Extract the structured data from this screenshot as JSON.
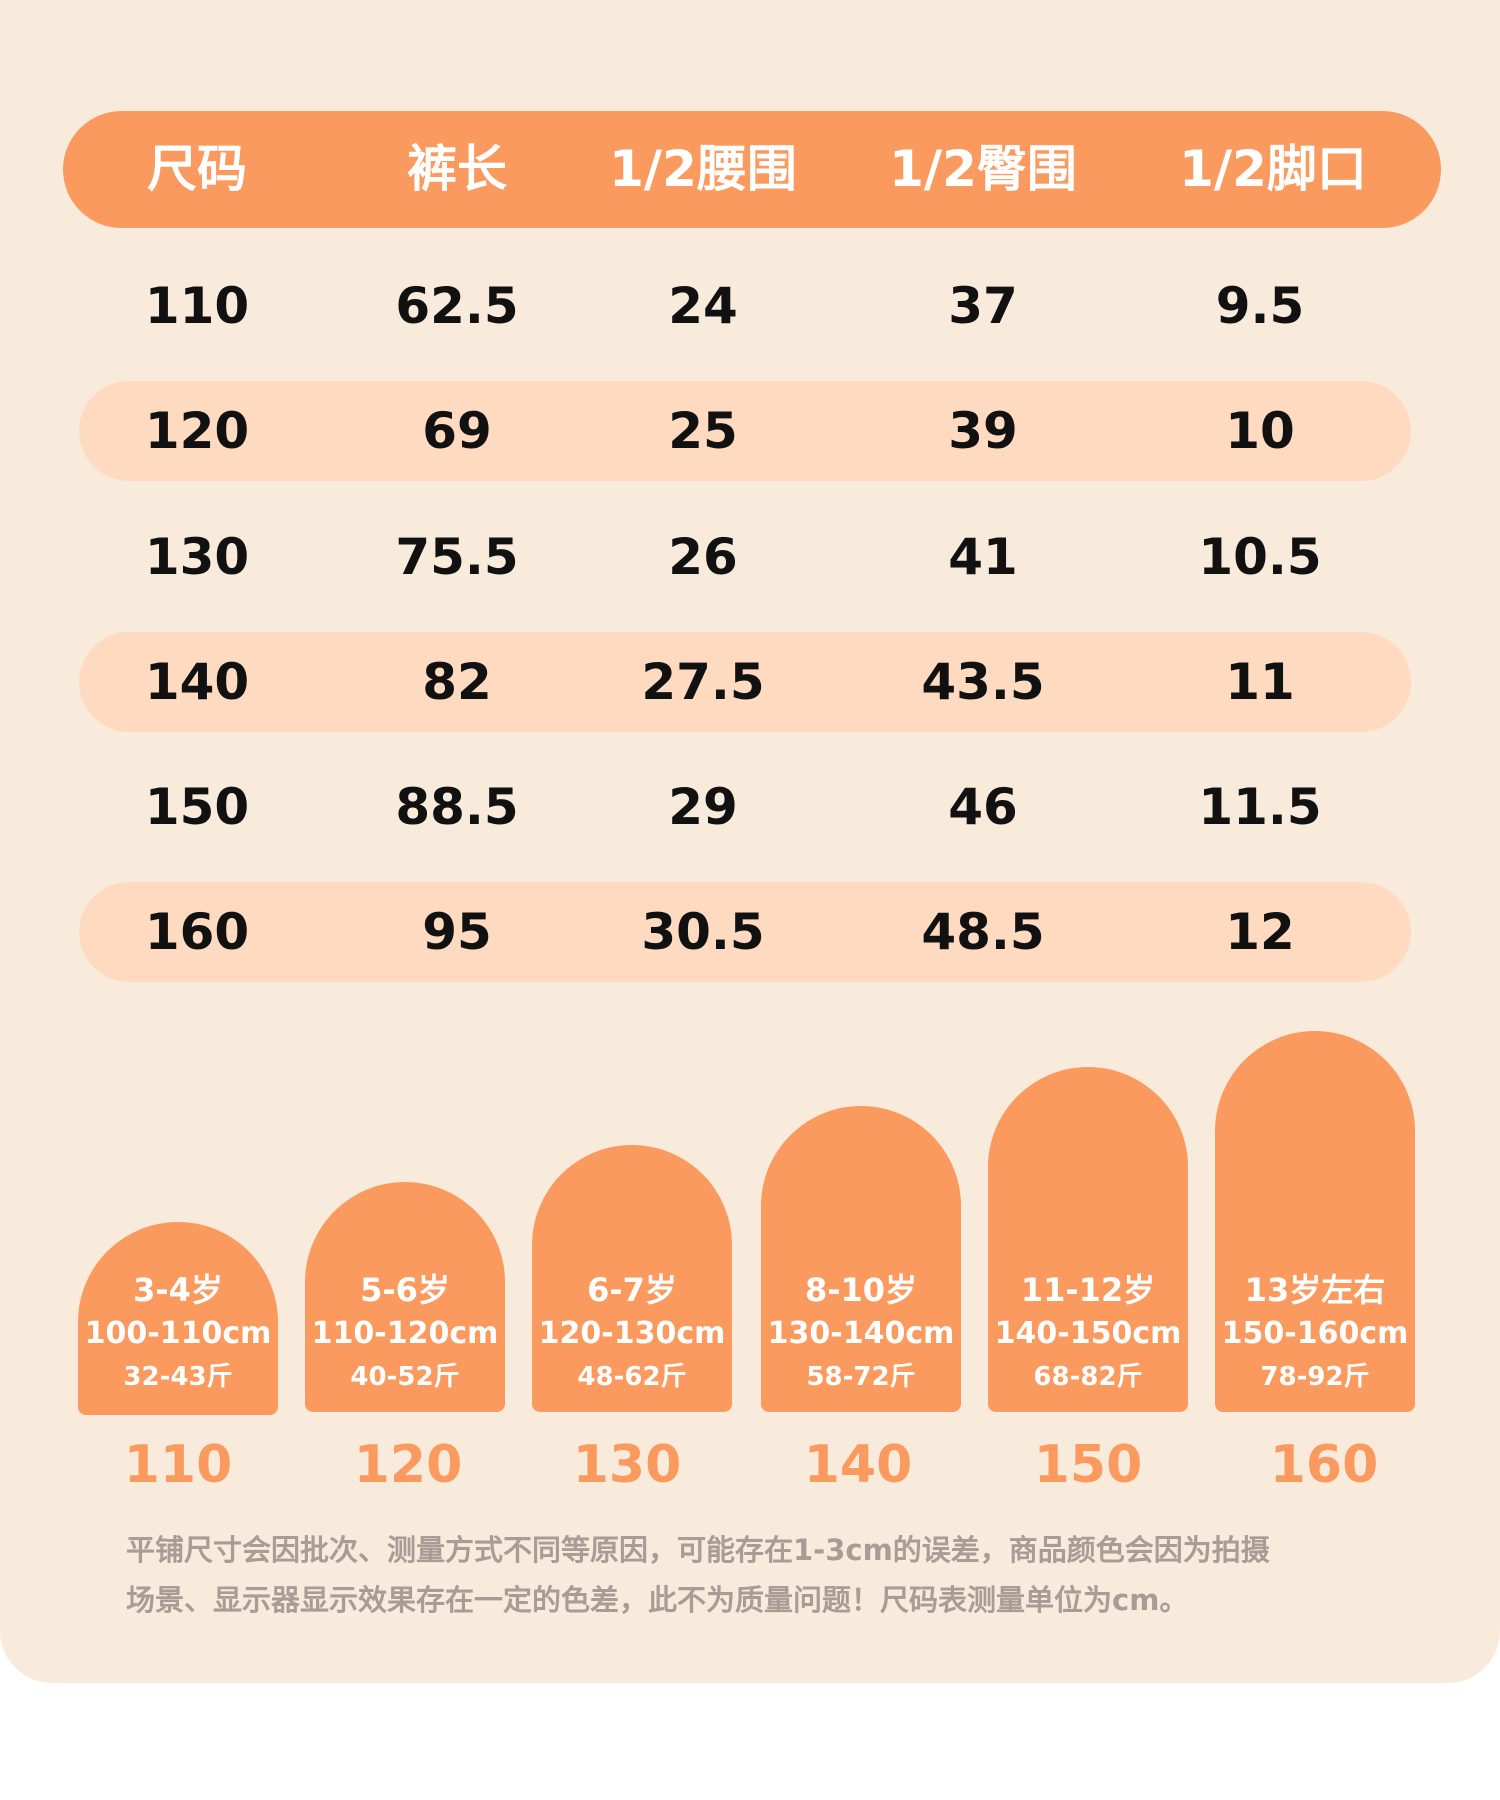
{
  "table": {
    "headers": [
      "尺码",
      "裤长",
      "1/2腰围",
      "1/2臀围",
      "1/2脚口"
    ],
    "rows": [
      [
        "110",
        "62.5",
        "24",
        "37",
        "9.5"
      ],
      [
        "120",
        "69",
        "25",
        "39",
        "10"
      ],
      [
        "130",
        "75.5",
        "26",
        "41",
        "10.5"
      ],
      [
        "140",
        "82",
        "27.5",
        "43.5",
        "11"
      ],
      [
        "150",
        "88.5",
        "29",
        "46",
        "11.5"
      ],
      [
        "160",
        "95",
        "30.5",
        "48.5",
        "12"
      ]
    ]
  },
  "size_guide": [
    {
      "age": "3-4岁",
      "height": "100-110cm",
      "weight": "32-43斤",
      "size": "110"
    },
    {
      "age": "5-6岁",
      "height": "110-120cm",
      "weight": "40-52斤",
      "size": "120"
    },
    {
      "age": "6-7岁",
      "height": "120-130cm",
      "weight": "48-62斤",
      "size": "130"
    },
    {
      "age": "8-10岁",
      "height": "130-140cm",
      "weight": "58-72斤",
      "size": "140"
    },
    {
      "age": "11-12岁",
      "height": "140-150cm",
      "weight": "68-82斤",
      "size": "150"
    },
    {
      "age": "13岁左右",
      "height": "150-160cm",
      "weight": "78-92斤",
      "size": "160"
    }
  ],
  "note": {
    "line1": "平铺尺寸会因批次、测量方式不同等原因，可能存在1-3cm的误差，商品颜色会因为拍摄",
    "line2": "场景、显示器显示效果存在一定的色差，此不为质量问题！尺码表测量单位为cm。"
  },
  "colors": {
    "accent": "#fb9a5f",
    "band": "#fedac1",
    "background": "#f9ebdc",
    "note_text": "#a79d96"
  }
}
